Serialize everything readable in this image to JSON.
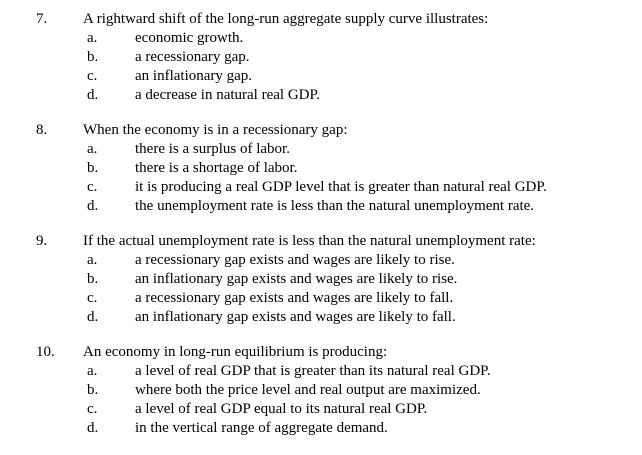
{
  "page": {
    "background": "#ffffff",
    "text_color": "#000000"
  },
  "questions": [
    {
      "number": "7.",
      "text": "A rightward shift of the long-run aggregate supply curve illustrates:",
      "options": [
        {
          "letter": "a.",
          "text": "economic growth."
        },
        {
          "letter": "b.",
          "text": "a recessionary gap."
        },
        {
          "letter": "c.",
          "text": "an inflationary gap."
        },
        {
          "letter": "d.",
          "text": "a decrease in natural real GDP."
        }
      ]
    },
    {
      "number": "8.",
      "text": "When the economy is in a recessionary gap:",
      "options": [
        {
          "letter": "a.",
          "text": "there is a surplus of labor."
        },
        {
          "letter": "b.",
          "text": "there is a shortage of labor."
        },
        {
          "letter": "c.",
          "text": "it is producing a real GDP level that is greater than natural real GDP."
        },
        {
          "letter": "d.",
          "text": "the unemployment rate is less than the natural unemployment rate."
        }
      ]
    },
    {
      "number": "9.",
      "text": "If the actual unemployment rate is less than the natural unemployment rate:",
      "options": [
        {
          "letter": "a.",
          "text": "a recessionary gap exists and wages are likely to rise."
        },
        {
          "letter": "b.",
          "text": "an inflationary gap exists and wages are likely to rise."
        },
        {
          "letter": "c.",
          "text": "a recessionary gap exists and wages are likely to fall."
        },
        {
          "letter": "d.",
          "text": "an inflationary gap exists and wages are likely to fall."
        }
      ]
    },
    {
      "number": "10.",
      "text": "An economy in long-run equilibrium is producing:",
      "options": [
        {
          "letter": "a.",
          "text": "a level of real GDP that is greater than its natural real GDP."
        },
        {
          "letter": "b.",
          "text": "where both the price level and real output are maximized."
        },
        {
          "letter": "c.",
          "text": "a level of real GDP equal to its natural real GDP."
        },
        {
          "letter": "d.",
          "text": "in the vertical range of aggregate demand."
        }
      ]
    }
  ]
}
